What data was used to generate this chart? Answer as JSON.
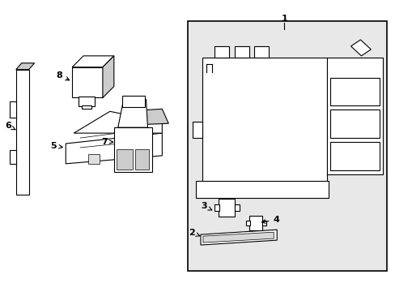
{
  "bg_color": "#ffffff",
  "line_color": "#000000",
  "box_bg": "#e0e0e0",
  "fig_width": 4.89,
  "fig_height": 3.6,
  "dpi": 100
}
